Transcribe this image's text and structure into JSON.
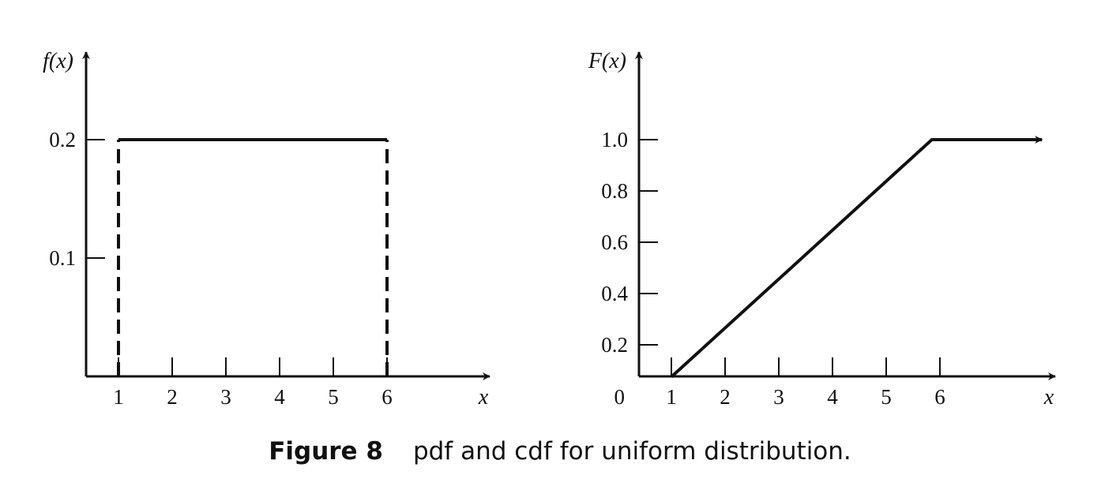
{
  "figure": {
    "caption_label": "Figure 8",
    "caption_text": "pdf and cdf for uniform distribution."
  },
  "chart_data": [
    {
      "type": "line",
      "ylabel": "f(x)",
      "xlabel": "x",
      "x_ticks": [
        "1",
        "2",
        "3",
        "4",
        "5",
        "6"
      ],
      "y_ticks": [
        "0.1",
        "0.2"
      ],
      "xlim": [
        0.4,
        8.0
      ],
      "ylim": [
        0,
        0.29
      ],
      "series": [
        {
          "points": [
            [
              1,
              0.2
            ],
            [
              6,
              0.2
            ]
          ],
          "style": "solid"
        }
      ],
      "dashed_verticals": [
        {
          "x": 1,
          "y": [
            0,
            0.2
          ]
        },
        {
          "x": 6,
          "y": [
            0,
            0.2
          ]
        }
      ]
    },
    {
      "type": "line",
      "ylabel": "F(x)",
      "xlabel": "x",
      "origin_label": "0",
      "x_ticks": [
        "1",
        "2",
        "3",
        "4",
        "5",
        "6"
      ],
      "y_ticks": [
        "0.2",
        "0.4",
        "0.6",
        "0.8",
        "1.0"
      ],
      "xlim": [
        0.4,
        8.0
      ],
      "ylim": [
        0.075,
        1.37
      ],
      "series": [
        {
          "points": [
            [
              1,
              0.075
            ],
            [
              5.85,
              1.0
            ],
            [
              7.9,
              1.0
            ]
          ],
          "style": "solid",
          "end_arrow": true
        }
      ]
    }
  ]
}
